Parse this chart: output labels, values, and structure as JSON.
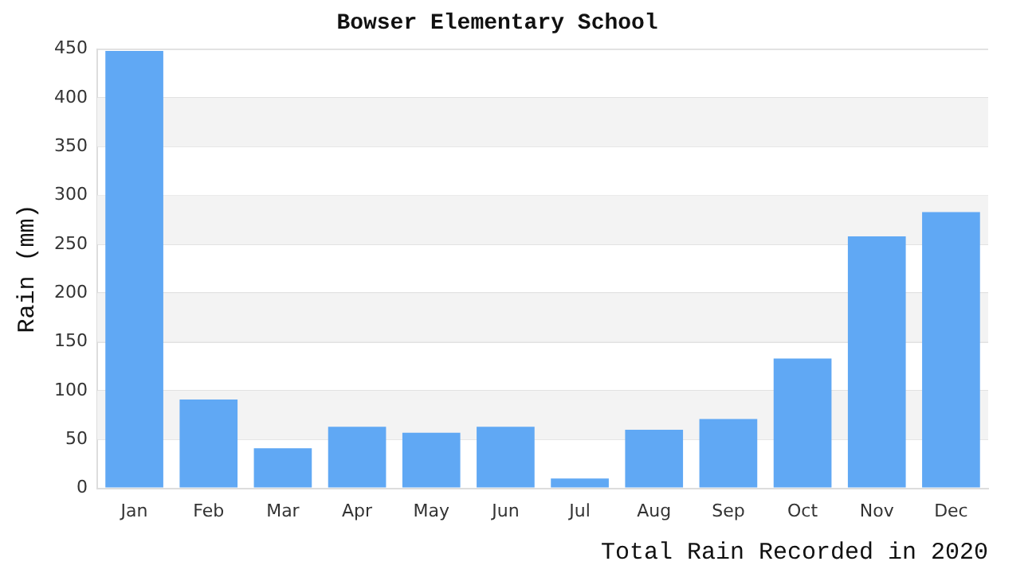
{
  "chart_data": {
    "type": "bar",
    "title": "Bowser Elementary School",
    "xlabel": "Total Rain Recorded in 2020",
    "ylabel": "Rain (mm)",
    "categories": [
      "Jan",
      "Feb",
      "Mar",
      "Apr",
      "May",
      "Jun",
      "Jul",
      "Aug",
      "Sep",
      "Oct",
      "Nov",
      "Dec"
    ],
    "values": [
      448,
      91,
      41,
      63,
      57,
      63,
      10,
      60,
      71,
      133,
      258,
      283
    ],
    "color": "#60a8f4",
    "ylim": [
      0,
      450
    ],
    "yticks": [
      0,
      50,
      100,
      150,
      200,
      250,
      300,
      350,
      400,
      450
    ],
    "grid": "y"
  }
}
